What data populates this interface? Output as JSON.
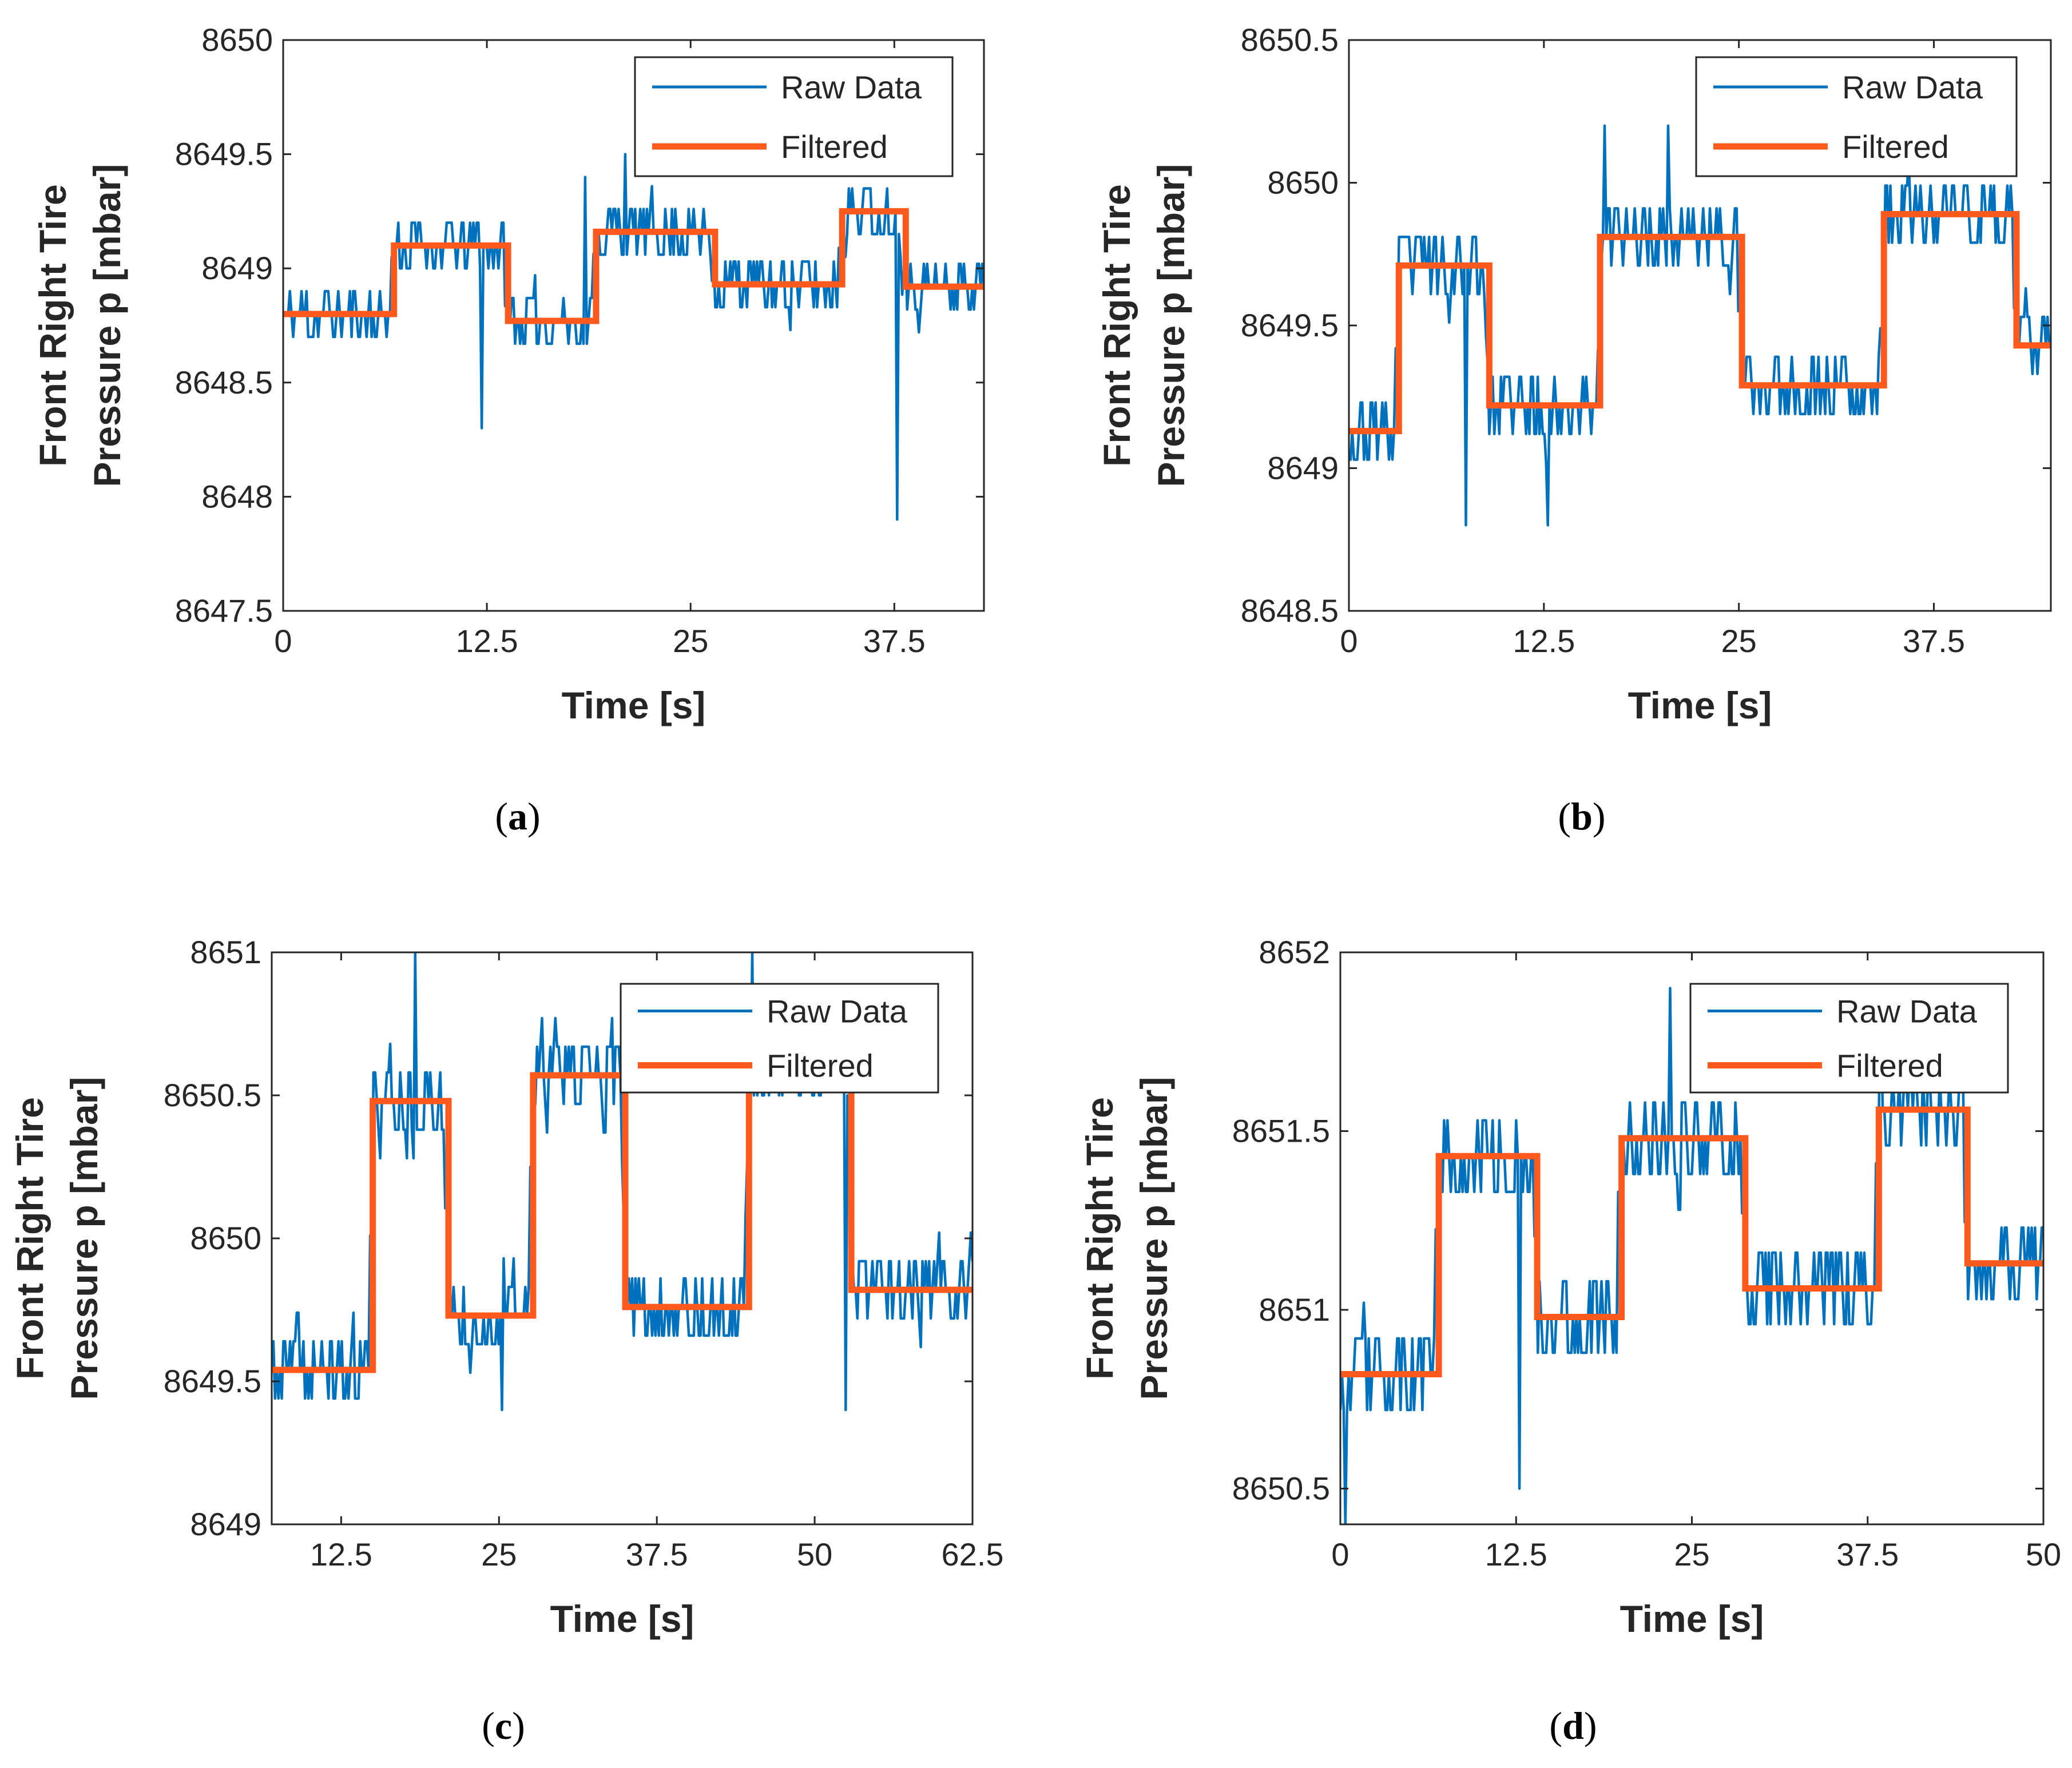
{
  "colors": {
    "raw": "#0072BD",
    "filtered": "#FF5A1E",
    "axis": "#262626"
  },
  "chart_data": [
    {
      "panel": "a",
      "caption": "(a)",
      "type": "line",
      "xlabel": "Time [s]",
      "ylabel_lines": [
        "Front Right Tire",
        "Pressure p [mbar]"
      ],
      "xlim": [
        0,
        43
      ],
      "ylim": [
        8647.5,
        8650
      ],
      "xticks": [
        0,
        12.5,
        25,
        37.5
      ],
      "xtick_labels": [
        "0",
        "12.5",
        "25",
        "37.5"
      ],
      "yticks": [
        8647.5,
        8648,
        8648.5,
        8649,
        8649.5,
        8650
      ],
      "ytick_labels": [
        "8647.5",
        "8648",
        "8648.5",
        "8649",
        "8649.5",
        "8650"
      ],
      "legend": {
        "location": "top-right",
        "entries": [
          "Raw Data",
          "Filtered"
        ]
      },
      "series": [
        {
          "name": "Raw Data",
          "seed": 11,
          "noise": 0.12,
          "spikes": [
            [
              12.2,
              8648.3
            ],
            [
              37.7,
              8647.9
            ],
            [
              18.5,
              8649.4
            ],
            [
              21.0,
              8649.5
            ]
          ]
        },
        {
          "name": "Filtered",
          "x": [
            0,
            6.8,
            6.8,
            13.8,
            13.8,
            19.2,
            19.2,
            26.5,
            26.5,
            34.3,
            34.3,
            38.2,
            38.2,
            43
          ],
          "y": [
            8648.8,
            8648.8,
            8649.1,
            8649.1,
            8648.77,
            8648.77,
            8649.16,
            8649.16,
            8648.93,
            8648.93,
            8649.25,
            8649.25,
            8648.92,
            8648.92
          ]
        }
      ]
    },
    {
      "panel": "b",
      "caption": "(b)",
      "type": "line",
      "xlabel": "Time [s]",
      "ylabel_lines": [
        "Front Right Tire",
        "Pressure p [mbar]"
      ],
      "xlim": [
        0,
        45
      ],
      "ylim": [
        8648.5,
        8650.5
      ],
      "xticks": [
        0,
        12.5,
        25,
        37.5
      ],
      "xtick_labels": [
        "0",
        "12.5",
        "25",
        "37.5"
      ],
      "yticks": [
        8648.5,
        8649,
        8649.5,
        8650,
        8650.5
      ],
      "ytick_labels": [
        "8648.5",
        "8649",
        "8649.5",
        "8650",
        "8650.5"
      ],
      "legend": {
        "location": "top-right",
        "entries": [
          "Raw Data",
          "Filtered"
        ]
      },
      "series": [
        {
          "name": "Raw Data",
          "seed": 23,
          "noise": 0.12,
          "spikes": [
            [
              7.5,
              8648.8
            ],
            [
              12.8,
              8648.8
            ],
            [
              16.4,
              8650.2
            ],
            [
              20.5,
              8650.2
            ]
          ]
        },
        {
          "name": "Filtered",
          "x": [
            0,
            3.2,
            3.2,
            9.0,
            9.0,
            16.1,
            16.1,
            25.2,
            25.2,
            34.3,
            34.3,
            42.8,
            42.8,
            45
          ],
          "y": [
            8649.13,
            8649.13,
            8649.71,
            8649.71,
            8649.22,
            8649.22,
            8649.81,
            8649.81,
            8649.29,
            8649.29,
            8649.89,
            8649.89,
            8649.43,
            8649.43
          ]
        }
      ]
    },
    {
      "panel": "c",
      "caption": "(c)",
      "type": "line",
      "xlabel": "Time [s]",
      "ylabel_lines": [
        "Front Right Tire",
        "Pressure p [mbar]"
      ],
      "xlim": [
        7,
        62.5
      ],
      "ylim": [
        8649,
        8651
      ],
      "xticks": [
        12.5,
        25,
        37.5,
        50,
        62.5
      ],
      "xtick_labels": [
        "12.5",
        "25",
        "37.5",
        "50",
        "62.5"
      ],
      "yticks": [
        8649,
        8649.5,
        8650,
        8650.5,
        8651
      ],
      "ytick_labels": [
        "8649",
        "8649.5",
        "8650",
        "8650.5",
        "8651"
      ],
      "legend": {
        "location": "top-right",
        "entries": [
          "Raw Data",
          "Filtered"
        ]
      },
      "series": [
        {
          "name": "Raw Data",
          "seed": 37,
          "noise": 0.14,
          "spikes": [
            [
              18.3,
              8651.0
            ],
            [
              25.2,
              8649.4
            ],
            [
              45.0,
              8651.0
            ],
            [
              52.5,
              8649.4
            ]
          ]
        },
        {
          "name": "Filtered",
          "x": [
            7,
            15.0,
            15.0,
            21.0,
            21.0,
            27.7,
            27.7,
            35.0,
            35.0,
            44.8,
            44.8,
            52.9,
            52.9,
            62.5
          ],
          "y": [
            8649.54,
            8649.54,
            8650.48,
            8650.48,
            8649.73,
            8649.73,
            8650.57,
            8650.57,
            8649.76,
            8649.76,
            8650.6,
            8650.6,
            8649.82,
            8649.82
          ]
        }
      ]
    },
    {
      "panel": "d",
      "caption": "(d)",
      "type": "line",
      "xlabel": "Time [s]",
      "ylabel_lines": [
        "Front Right Tire",
        "Pressure p [mbar]"
      ],
      "xlim": [
        0,
        50
      ],
      "ylim": [
        8650.4,
        8652
      ],
      "xticks": [
        0,
        12.5,
        25,
        37.5,
        50
      ],
      "xtick_labels": [
        "0",
        "12.5",
        "25",
        "37.5",
        "50"
      ],
      "yticks": [
        8650.5,
        8651,
        8651.5,
        8652
      ],
      "ytick_labels": [
        "8650.5",
        "8651",
        "8651.5",
        "8652"
      ],
      "legend": {
        "location": "top-right",
        "entries": [
          "Raw Data",
          "Filtered"
        ]
      },
      "series": [
        {
          "name": "Raw Data",
          "seed": 53,
          "noise": 0.12,
          "spikes": [
            [
              12.7,
              8650.5
            ],
            [
              0.3,
              8650.4
            ],
            [
              23.5,
              8651.9
            ],
            [
              38.5,
              8651.8
            ]
          ]
        },
        {
          "name": "Filtered",
          "x": [
            0,
            7.0,
            7.0,
            14.0,
            14.0,
            20.0,
            20.0,
            28.8,
            28.8,
            38.3,
            38.3,
            44.6,
            44.6,
            50
          ],
          "y": [
            8650.82,
            8650.82,
            8651.43,
            8651.43,
            8650.98,
            8650.98,
            8651.48,
            8651.48,
            8651.06,
            8651.06,
            8651.56,
            8651.56,
            8651.13,
            8651.13
          ]
        }
      ]
    }
  ]
}
